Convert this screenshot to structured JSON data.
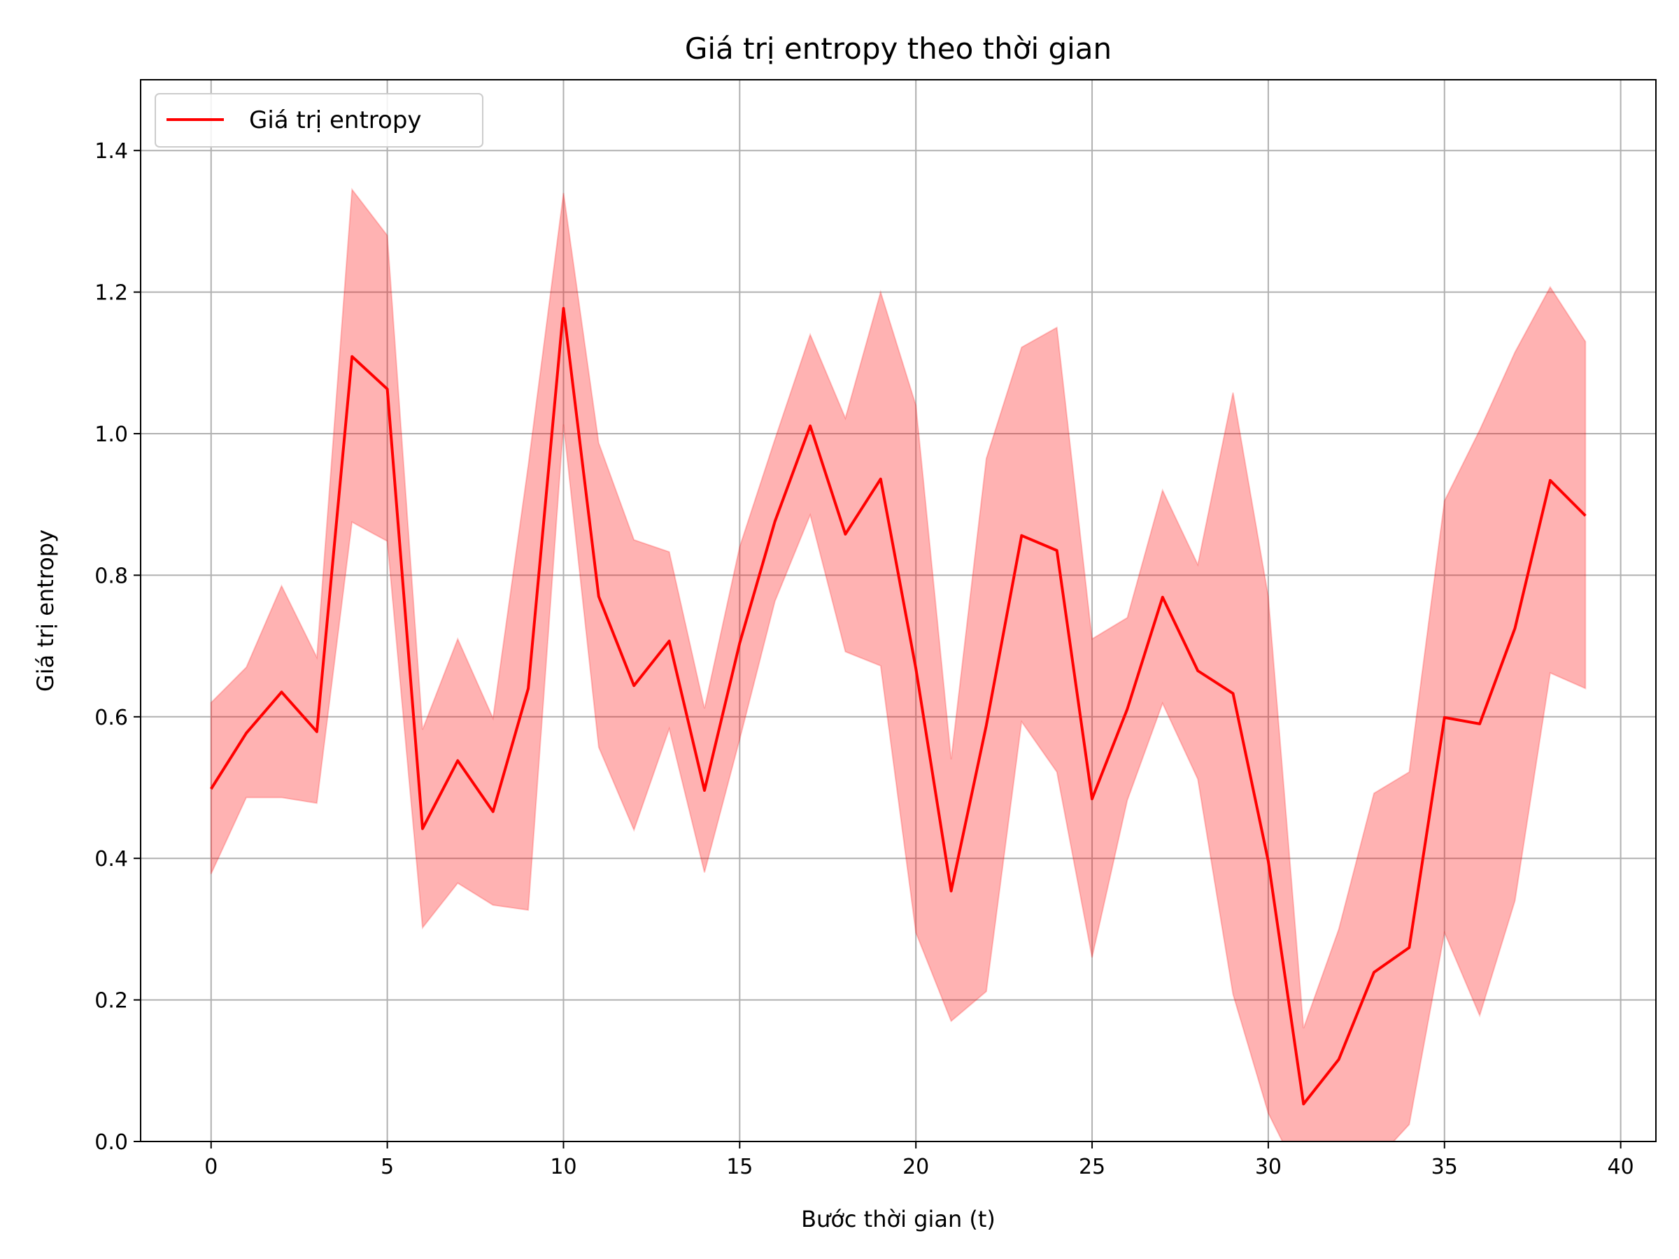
{
  "chart_data": {
    "type": "line",
    "title": "Giá trị entropy theo thời gian",
    "xlabel": "Bước thời gian (t)",
    "ylabel": "Giá trị entropy",
    "xlim": [
      -2,
      41
    ],
    "ylim": [
      0.0,
      1.5
    ],
    "x_ticks": [
      0,
      5,
      10,
      15,
      20,
      25,
      30,
      35,
      40
    ],
    "y_ticks": [
      0.0,
      0.2,
      0.4,
      0.6,
      0.8,
      1.0,
      1.2,
      1.4
    ],
    "y_tick_labels": [
      "0.0",
      "0.2",
      "0.4",
      "0.6",
      "0.8",
      "1.0",
      "1.2",
      "1.4"
    ],
    "grid": true,
    "legend_position": "top-left",
    "x": [
      0,
      1,
      2,
      3,
      4,
      5,
      6,
      7,
      8,
      9,
      10,
      11,
      12,
      13,
      14,
      15,
      16,
      17,
      18,
      19,
      20,
      21,
      22,
      23,
      24,
      25,
      26,
      27,
      28,
      29,
      30,
      31,
      32,
      33,
      34,
      35,
      36,
      37,
      38,
      39
    ],
    "series": [
      {
        "name": "Giá trị entropy",
        "color": "#ff0000",
        "values": [
          0.498,
          0.577,
          0.635,
          0.579,
          1.109,
          1.063,
          0.442,
          0.538,
          0.466,
          0.64,
          1.177,
          0.77,
          0.644,
          0.707,
          0.496,
          0.704,
          0.876,
          1.011,
          0.858,
          0.936,
          0.668,
          0.354,
          0.588,
          0.856,
          0.835,
          0.484,
          0.611,
          0.769,
          0.665,
          0.633,
          0.396,
          0.053,
          0.116,
          0.239,
          0.274,
          0.599,
          0.59,
          0.725,
          0.934,
          0.884
        ]
      }
    ],
    "band": {
      "color": "#ff0000",
      "opacity": 0.3,
      "upper": [
        0.62,
        0.67,
        0.785,
        0.684,
        1.345,
        1.28,
        0.582,
        0.71,
        0.598,
        0.955,
        1.34,
        0.987,
        0.85,
        0.833,
        0.612,
        0.84,
        0.992,
        1.14,
        1.022,
        1.2,
        1.04,
        0.54,
        0.965,
        1.122,
        1.15,
        0.71,
        0.74,
        0.92,
        0.815,
        1.058,
        0.77,
        0.16,
        0.3,
        0.492,
        0.522,
        0.905,
        1.005,
        1.115,
        1.207,
        1.13
      ],
      "lower": [
        0.378,
        0.486,
        0.486,
        0.478,
        0.875,
        0.848,
        0.302,
        0.365,
        0.334,
        0.327,
        1.013,
        0.557,
        0.44,
        0.583,
        0.38,
        0.568,
        0.763,
        0.885,
        0.692,
        0.672,
        0.295,
        0.17,
        0.212,
        0.593,
        0.522,
        0.26,
        0.482,
        0.619,
        0.512,
        0.208,
        0.04,
        -0.06,
        -0.06,
        -0.03,
        0.024,
        0.295,
        0.178,
        0.34,
        0.662,
        0.64
      ]
    }
  }
}
